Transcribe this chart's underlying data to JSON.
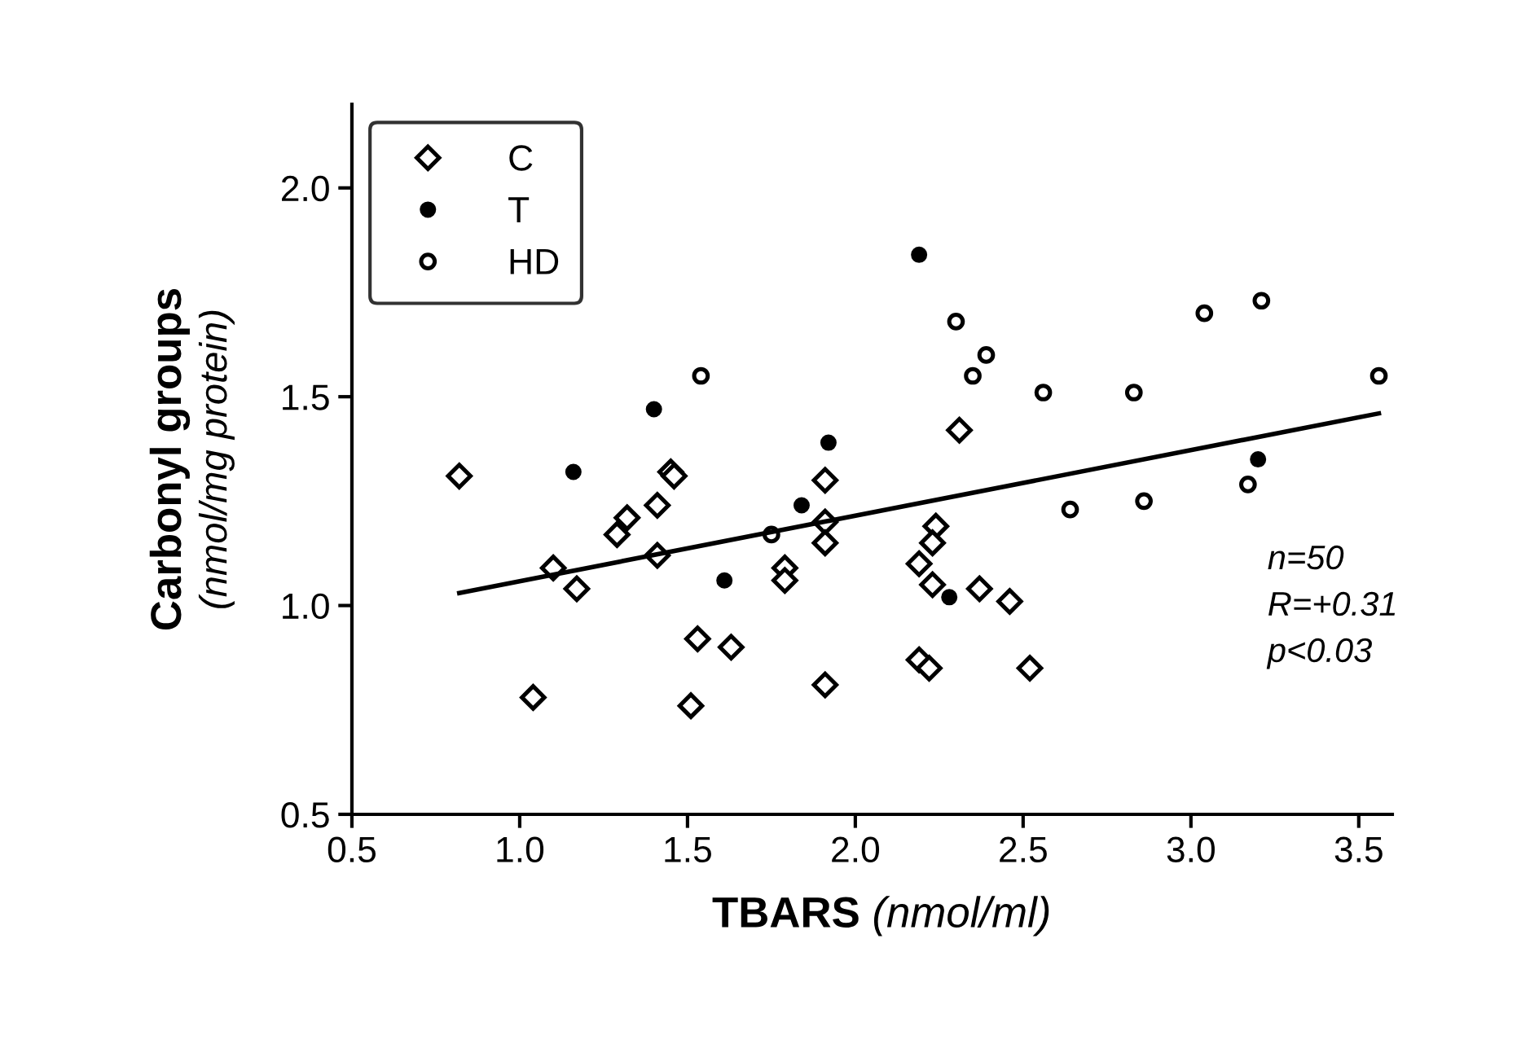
{
  "chart_data": {
    "type": "scatter",
    "xlabel": "TBARS (nmol/ml)",
    "ylabel": "Carbonyl groups\n(nmol/mg protein)",
    "xlim": [
      0.5,
      3.6
    ],
    "ylim": [
      0.5,
      2.2
    ],
    "xticks": [
      0.5,
      {
        "value": 1,
        "label": "1.0"
      },
      1.5,
      {
        "value": 2,
        "label": "2.0"
      },
      2.5,
      {
        "value": 3,
        "label": "3.0"
      },
      3.5
    ],
    "yticks": [
      0.5,
      {
        "value": 1,
        "label": "1.0"
      },
      1.5,
      {
        "value": 2,
        "label": "2.0"
      }
    ],
    "grid": false,
    "legend": "top left",
    "annotations": [
      {
        "text": "n=50\nR=+0.31\np<0.03"
      }
    ],
    "series": [
      {
        "name": "C",
        "marker": "diamond",
        "color": "#000000",
        "x": [
          0.82,
          1.1,
          1.17,
          1.04,
          1.29,
          1.32,
          1.41,
          1.41,
          1.45,
          1.46,
          1.53,
          1.51,
          1.63,
          1.79,
          1.79,
          1.91,
          1.91,
          1.91,
          1.91,
          2.31,
          2.24,
          2.23,
          2.19,
          2.23,
          2.37,
          2.46,
          2.19,
          2.22,
          2.52
        ],
        "values": [
          1.31,
          1.09,
          1.04,
          0.78,
          1.17,
          1.21,
          1.24,
          1.12,
          1.32,
          1.31,
          0.92,
          0.76,
          0.9,
          1.09,
          1.06,
          1.3,
          1.2,
          1.15,
          0.81,
          1.42,
          1.19,
          1.15,
          1.1,
          1.05,
          1.04,
          1.01,
          0.87,
          0.85,
          0.85
        ]
      },
      {
        "name": "T",
        "marker": "circle",
        "color": "#000000",
        "x": [
          1.16,
          1.4,
          1.92,
          1.84,
          1.61,
          2.19,
          2.28,
          3.2
        ],
        "values": [
          1.32,
          1.47,
          1.39,
          1.24,
          1.06,
          1.84,
          1.02,
          1.35
        ]
      },
      {
        "name": "HD",
        "marker": "circle",
        "color": "#000000",
        "x": [
          1.54,
          1.75,
          2.3,
          2.39,
          2.35,
          2.56,
          2.83,
          3.04,
          3.21,
          3.56,
          2.64,
          2.86,
          3.17
        ],
        "values": [
          1.55,
          1.17,
          1.68,
          1.6,
          1.55,
          1.51,
          1.51,
          1.7,
          1.73,
          1.55,
          1.23,
          1.25,
          1.29
        ]
      },
      {
        "type": "line",
        "color": "#000000",
        "x": [
          0.82,
          3.56
        ],
        "values": [
          1.03,
          1.46
        ]
      }
    ]
  }
}
